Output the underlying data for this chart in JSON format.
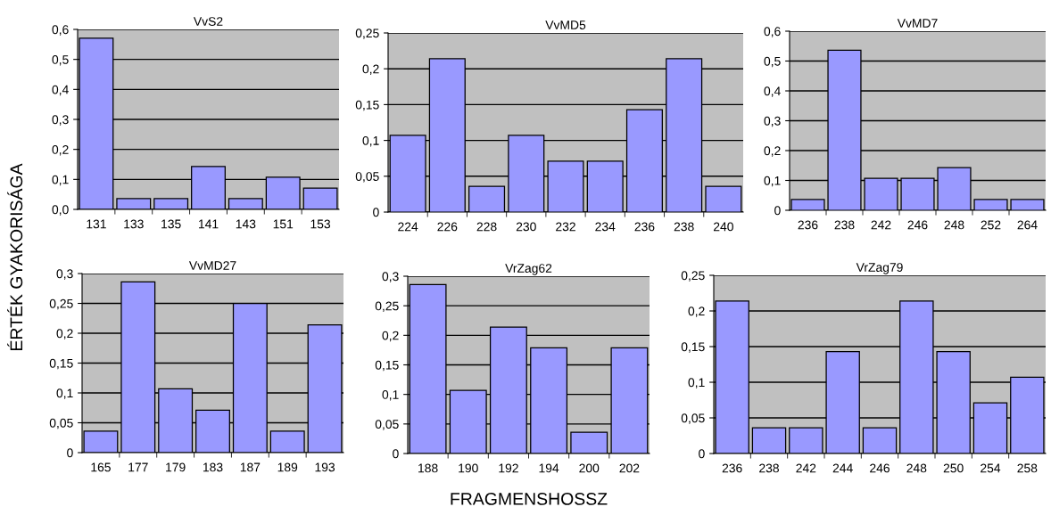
{
  "chart_data": [
    {
      "type": "bar",
      "title": "VvS2",
      "ylabel": "ÉRTÉK GYAKORISÁGA",
      "categories": [
        "131",
        "133",
        "135",
        "141",
        "143",
        "151",
        "153"
      ],
      "values": [
        0.571,
        0.036,
        0.036,
        0.143,
        0.036,
        0.107,
        0.071
      ],
      "color": "#9999ff",
      "ylim": [
        0,
        0.6
      ],
      "yticks": [
        {
          "value": 0,
          "label": "0,0"
        },
        {
          "value": 0.1,
          "label": "0,1"
        },
        {
          "value": 0.2,
          "label": "0,2"
        },
        {
          "value": 0.3,
          "label": "0,3"
        },
        {
          "value": 0.4,
          "label": "0,4"
        },
        {
          "value": 0.5,
          "label": "0,5"
        },
        {
          "value": 0.6,
          "label": "0,6"
        }
      ],
      "grid": "y"
    },
    {
      "type": "bar",
      "title": "VvMD5",
      "categories": [
        "224",
        "226",
        "228",
        "230",
        "232",
        "234",
        "236",
        "238",
        "240"
      ],
      "values": [
        0.107,
        0.214,
        0.036,
        0.107,
        0.071,
        0.071,
        0.143,
        0.214,
        0.036
      ],
      "color": "#9999ff",
      "ylim": [
        0,
        0.25
      ],
      "yticks": [
        0,
        {
          "value": 0.05,
          "label": "0,05"
        },
        {
          "value": 0.1,
          "label": "0,1"
        },
        {
          "value": 0.15,
          "label": "0,15"
        },
        {
          "value": 0.2,
          "label": "0,2"
        },
        {
          "value": 0.25,
          "label": "0,25"
        }
      ],
      "grid": "y"
    },
    {
      "type": "bar",
      "title": "VvMD7",
      "categories": [
        "236",
        "238",
        "242",
        "246",
        "248",
        "252",
        "264"
      ],
      "values": [
        0.036,
        0.536,
        0.107,
        0.107,
        0.143,
        0.036,
        0.036
      ],
      "color": "#9999ff",
      "ylim": [
        0,
        0.6
      ],
      "yticks": [
        0,
        {
          "value": 0.1,
          "label": "0,1"
        },
        {
          "value": 0.2,
          "label": "0,2"
        },
        {
          "value": 0.3,
          "label": "0,3"
        },
        {
          "value": 0.4,
          "label": "0,4"
        },
        {
          "value": 0.5,
          "label": "0,5"
        },
        {
          "value": 0.6,
          "label": "0,6"
        }
      ],
      "grid": "y"
    },
    {
      "type": "bar",
      "title": "VvMD27",
      "categories": [
        "165",
        "177",
        "179",
        "183",
        "187",
        "189",
        "193"
      ],
      "values": [
        0.036,
        0.286,
        0.107,
        0.071,
        0.25,
        0.036,
        0.214
      ],
      "color": "#9999ff",
      "ylim": [
        0,
        0.3
      ],
      "yticks": [
        0,
        {
          "value": 0.05,
          "label": "0,05"
        },
        {
          "value": 0.1,
          "label": "0,1"
        },
        {
          "value": 0.15,
          "label": "0,15"
        },
        {
          "value": 0.2,
          "label": "0,2"
        },
        {
          "value": 0.25,
          "label": "0,25"
        },
        {
          "value": 0.3,
          "label": "0,3"
        }
      ],
      "grid": "y"
    },
    {
      "type": "bar",
      "title": "VrZag62",
      "xlabel": "FRAGMENSHOSSZ",
      "categories": [
        "188",
        "190",
        "192",
        "194",
        "200",
        "202"
      ],
      "values": [
        0.286,
        0.107,
        0.214,
        0.179,
        0.036,
        0.179
      ],
      "color": "#9999ff",
      "ylim": [
        0,
        0.3
      ],
      "yticks": [
        0,
        {
          "value": 0.05,
          "label": "0,05"
        },
        {
          "value": 0.1,
          "label": "0,1"
        },
        {
          "value": 0.15,
          "label": "0,15"
        },
        {
          "value": 0.2,
          "label": "0,2"
        },
        {
          "value": 0.25,
          "label": "0,25"
        },
        {
          "value": 0.3,
          "label": "0,3"
        }
      ],
      "grid": "y"
    },
    {
      "type": "bar",
      "title": "VrZag79",
      "categories": [
        "236",
        "238",
        "242",
        "244",
        "246",
        "248",
        "250",
        "254",
        "258"
      ],
      "values": [
        0.214,
        0.036,
        0.036,
        0.143,
        0.036,
        0.214,
        0.143,
        0.071,
        0.107
      ],
      "color": "#9999ff",
      "ylim": [
        0,
        0.25
      ],
      "yticks": [
        0,
        {
          "value": 0.05,
          "label": "0,05"
        },
        {
          "value": 0.1,
          "label": "0,1"
        },
        {
          "value": 0.15,
          "label": "0,15"
        },
        {
          "value": 0.2,
          "label": "0,2"
        },
        {
          "value": 0.25,
          "label": "0,25"
        }
      ],
      "grid": "y"
    }
  ]
}
